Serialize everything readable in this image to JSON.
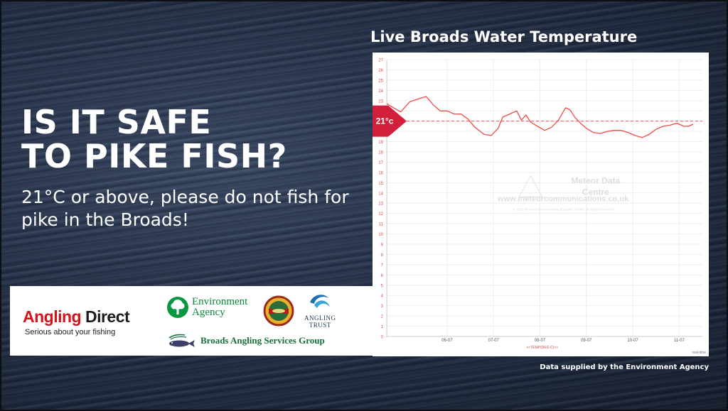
{
  "headline": {
    "line1": "IS IT SAFE",
    "line2": "TO PIKE FISH?"
  },
  "subtext": "21°C or above, please do not fish for pike in the Broads!",
  "logos": {
    "angling_direct": {
      "name_red": "Angling",
      "name_dark": "Direct",
      "tagline": "Serious about your fishing"
    },
    "environment_agency": {
      "line1": "Environment",
      "line2": "Agency"
    },
    "angling_trust": {
      "line1": "ANGLING",
      "line2": "TRUST"
    },
    "broads_angling": {
      "name": "Broads Angling Services Group"
    }
  },
  "chart_title": "Live Broads Water Temperature",
  "source_note": "Data supplied by the Environment Agency",
  "colors": {
    "line": "#ef4b45",
    "threshold": "#d21f3c",
    "panel": "#ffffff",
    "text": "#ffffff"
  },
  "chart_data": {
    "type": "line",
    "title": "Live Broads Water Temperature",
    "xlabel": "<<TEMP(DEG C)>>",
    "ylabel": "",
    "ylim": [
      0,
      27
    ],
    "yticks": [
      0,
      1,
      2,
      3,
      4,
      5,
      6,
      7,
      8,
      9,
      10,
      11,
      12,
      13,
      14,
      15,
      16,
      17,
      18,
      19,
      20,
      21,
      22,
      23,
      24,
      25,
      26,
      27
    ],
    "xlim": [
      4.7,
      11.5
    ],
    "xticks": [
      {
        "value": 6,
        "label": "06-07"
      },
      {
        "value": 7,
        "label": "07-07"
      },
      {
        "value": 8,
        "label": "08-07"
      },
      {
        "value": 9,
        "label": "09-07"
      },
      {
        "value": 10,
        "label": "10-07"
      },
      {
        "value": 11,
        "label": "11-07"
      }
    ],
    "threshold": {
      "value": 21,
      "label": "21°c"
    },
    "watermark": {
      "line1": "Meteor Data",
      "line2": "Centre",
      "url": "www.meteorcommunications.co.uk",
      "copyright": "© 2025 Meteor Communications (Europe) Limited. All Rights Reserved"
    },
    "footer_label": "real-time",
    "series": [
      {
        "x": [
          4.7,
          4.85,
          5.0,
          5.2,
          5.4,
          5.55,
          5.7,
          5.85,
          6.0,
          6.15,
          6.3,
          6.45,
          6.6,
          6.8,
          6.95,
          7.1,
          7.2,
          7.35,
          7.5,
          7.6,
          7.7,
          7.8,
          7.95,
          8.1,
          8.25,
          8.4,
          8.55,
          8.65,
          8.75,
          8.85,
          9.0,
          9.15,
          9.3,
          9.45,
          9.6,
          9.75,
          9.9,
          10.05,
          10.2,
          10.35,
          10.5,
          10.65,
          10.8,
          10.95,
          11.1,
          11.2,
          11.3
        ],
        "y": [
          22.7,
          22.3,
          21.9,
          22.9,
          23.2,
          23.4,
          22.6,
          22.0,
          22.0,
          21.7,
          21.7,
          21.2,
          20.4,
          19.7,
          19.6,
          20.3,
          21.4,
          21.7,
          22.0,
          21.1,
          21.6,
          20.9,
          20.5,
          20.1,
          20.4,
          21.1,
          22.3,
          22.1,
          21.4,
          20.9,
          20.3,
          19.9,
          19.8,
          20.0,
          20.1,
          20.1,
          19.9,
          19.6,
          19.4,
          19.7,
          20.2,
          20.5,
          20.6,
          20.8,
          20.5,
          20.5,
          20.7
        ]
      }
    ]
  }
}
